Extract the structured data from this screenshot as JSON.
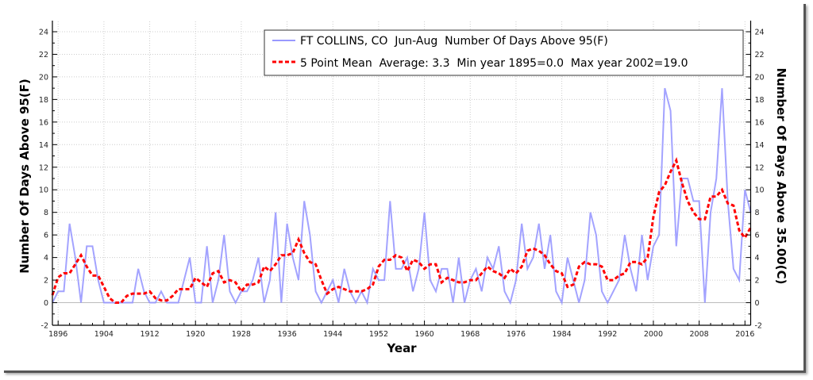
{
  "chart_data": {
    "type": "line",
    "title": "",
    "xlabel": "Year",
    "ylabel": "Number Of Days Above 95(F)",
    "ylabel_right": "Number Of Days Above 35.00(C)",
    "xlim": [
      1895,
      2017
    ],
    "ylim": [
      -2,
      24
    ],
    "grid": true,
    "x_ticks": [
      1896,
      1904,
      1912,
      1920,
      1928,
      1936,
      1944,
      1952,
      1960,
      1968,
      1976,
      1984,
      1992,
      2000,
      2008,
      2016
    ],
    "y_ticks": [
      -2,
      0,
      2,
      4,
      6,
      8,
      10,
      12,
      14,
      16,
      18,
      20,
      22,
      24
    ],
    "legend_position": "top-right",
    "x_start": 1895,
    "series": [
      {
        "name": "FT COLLINS, CO  Jun-Aug  Number Of Days Above 95(F)",
        "color": "#9999ff",
        "style": "solid",
        "values": [
          0,
          1,
          1,
          7,
          4,
          0,
          5,
          5,
          2,
          0,
          0,
          0,
          0,
          0,
          0,
          3,
          1,
          0,
          0,
          1,
          0,
          0,
          0,
          2,
          4,
          0,
          0,
          5,
          0,
          2,
          6,
          1,
          0,
          1,
          1,
          2,
          4,
          0,
          2,
          8,
          0,
          7,
          4,
          2,
          9,
          6,
          1,
          0,
          1,
          2,
          0,
          3,
          1,
          0,
          1,
          0,
          3,
          2,
          2,
          9,
          3,
          3,
          4,
          1,
          3,
          8,
          2,
          1,
          3,
          3,
          0,
          4,
          0,
          2,
          3,
          1,
          4,
          3,
          5,
          1,
          0,
          2,
          7,
          3,
          4,
          7,
          3,
          6,
          1,
          0,
          4,
          2,
          0,
          2,
          8,
          6,
          1,
          0,
          1,
          2,
          6,
          3,
          1,
          6,
          2,
          5,
          6,
          19,
          17,
          5,
          11,
          11,
          9,
          9,
          0,
          8,
          11,
          19,
          9,
          3,
          2,
          10,
          8
        ]
      },
      {
        "name": "5 Point Mean  Average: 3.3  Min year 1895=0.0  Max year 2002=19.0",
        "color": "#ff0000",
        "style": "dashed",
        "window": 5
      }
    ]
  }
}
